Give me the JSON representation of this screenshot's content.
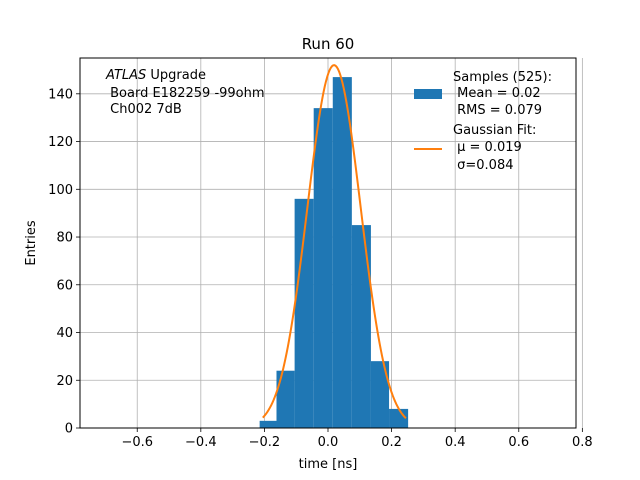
{
  "chart_data": {
    "type": "bar",
    "title": "Run 60",
    "xlabel": "time [ns]",
    "ylabel": "Entries",
    "xlim": [
      -0.78,
      0.78
    ],
    "ylim": [
      0,
      155
    ],
    "grid": true,
    "xticks": [
      -0.6,
      -0.4,
      -0.2,
      0.0,
      0.2,
      0.4,
      0.6,
      0.8
    ],
    "xtick_labels": [
      "−0.6",
      "−0.4",
      "−0.2",
      "0.0",
      "0.2",
      "0.4",
      "0.6",
      "0.8"
    ],
    "yticks": [
      0,
      20,
      40,
      60,
      80,
      100,
      120,
      140
    ],
    "ytick_labels": [
      "0",
      "20",
      "40",
      "60",
      "80",
      "100",
      "120",
      "140"
    ],
    "annotation": {
      "line1_italic": "ATLAS",
      "line1_rest": " Upgrade",
      "line2": " Board E182259 -99ohm",
      "line3": " Ch002 7dB"
    },
    "histogram": {
      "name": "Samples (525):",
      "color": "#1f77b4",
      "bin_edges": [
        -0.215,
        -0.162,
        -0.105,
        -0.045,
        0.015,
        0.075,
        0.135,
        0.192,
        0.252
      ],
      "counts": [
        3,
        24,
        96,
        134,
        147,
        85,
        28,
        8
      ]
    },
    "gaussian_fit": {
      "name": "Gaussian Fit:",
      "color": "#ff7f0e",
      "mu": 0.019,
      "sigma": 0.084,
      "amplitude": 152,
      "x_range": [
        -0.205,
        0.245
      ]
    },
    "legend": {
      "placement": "top-right",
      "hist_lines": [
        "Samples (525):",
        " Mean = 0.02",
        " RMS = 0.079"
      ],
      "fit_lines": [
        "Gaussian Fit:",
        " μ = 0.019",
        " σ=0.084"
      ]
    }
  }
}
